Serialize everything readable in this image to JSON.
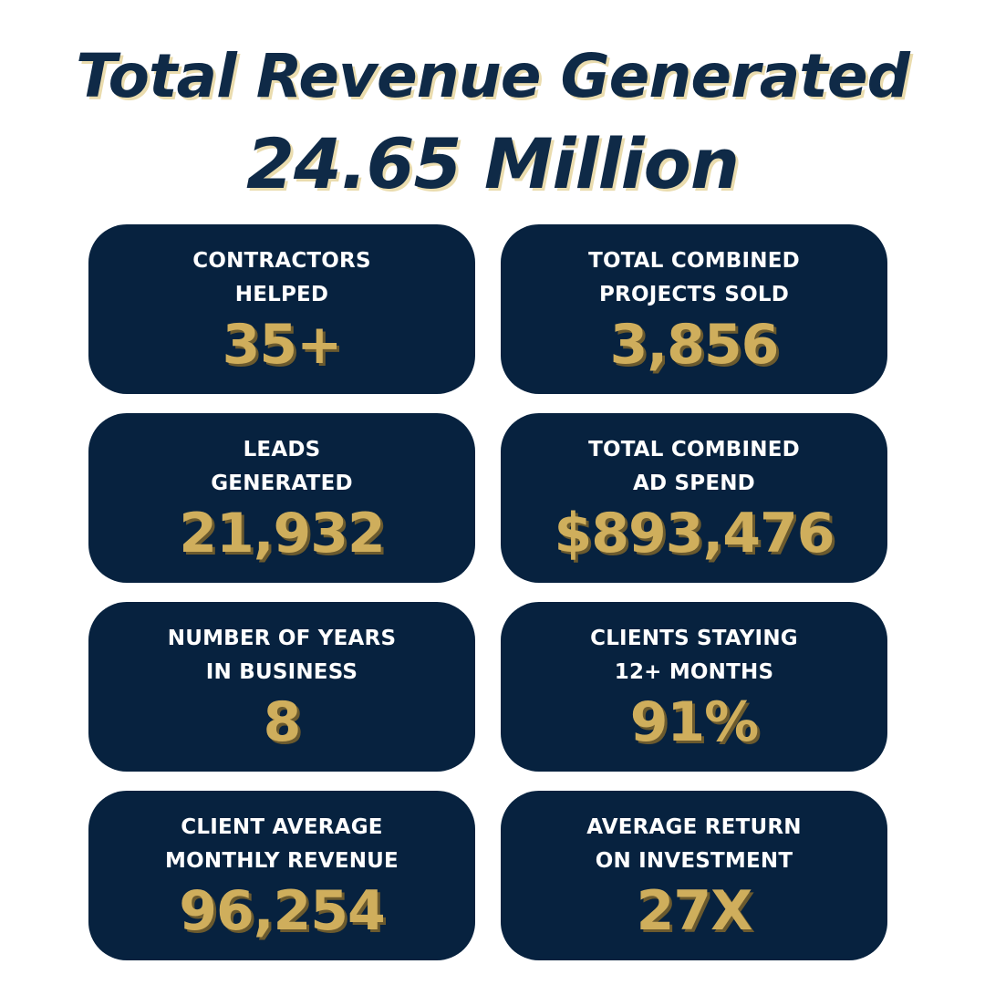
{
  "headline": {
    "title": "Total Revenue Generated",
    "total": "24.65 Million"
  },
  "cards": [
    {
      "label_line1": "CONTRACTORS",
      "label_line2": "HELPED",
      "value": "35+"
    },
    {
      "label_line1": "TOTAL COMBINED",
      "label_line2": "PROJECTS SOLD",
      "value": "3,856"
    },
    {
      "label_line1": "LEADS",
      "label_line2": "GENERATED",
      "value": "21,932"
    },
    {
      "label_line1": "TOTAL COMBINED",
      "label_line2": "AD SPEND",
      "value": "$893,476"
    },
    {
      "label_line1": "NUMBER OF YEARS",
      "label_line2": "IN BUSINESS",
      "value": "8"
    },
    {
      "label_line1": "CLIENTS STAYING",
      "label_line2": "12+ MONTHS",
      "value": "91%"
    },
    {
      "label_line1": "CLIENT AVERAGE",
      "label_line2": "MONTHLY REVENUE",
      "value": "96,254"
    },
    {
      "label_line1": "AVERAGE RETURN",
      "label_line2": "ON INVESTMENT",
      "value": "27X"
    }
  ],
  "colors": {
    "navy": "#07223f",
    "heading": "#0f2a47",
    "gold": "#cfae5c",
    "white": "#ffffff"
  }
}
